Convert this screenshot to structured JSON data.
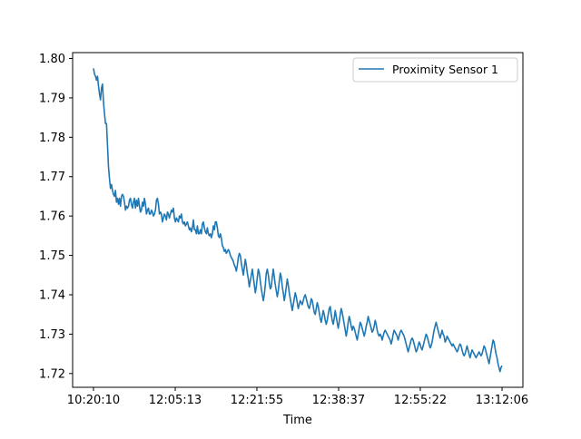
{
  "chart_data": {
    "type": "line",
    "title": "",
    "xlabel": "Time",
    "ylabel": "",
    "x_tick_labels": [
      "10:20:10",
      "12:05:13",
      "12:21:55",
      "12:38:37",
      "12:55:22",
      "13:12:06"
    ],
    "y_ticks": [
      1.72,
      1.73,
      1.74,
      1.75,
      1.76,
      1.77,
      1.78,
      1.79,
      1.8
    ],
    "y_tick_labels": [
      "1.72",
      "1.73",
      "1.74",
      "1.75",
      "1.76",
      "1.77",
      "1.78",
      "1.79",
      "1.80"
    ],
    "ylim": [
      1.7165,
      1.8015
    ],
    "grid": false,
    "legend_position": "top-right",
    "series": [
      {
        "name": "Proximity Sensor 1",
        "color": "#1f77b4",
        "values": [
          1.7975,
          1.796,
          1.7955,
          1.7945,
          1.7955,
          1.793,
          1.791,
          1.7895,
          1.7925,
          1.7935,
          1.789,
          1.786,
          1.7835,
          1.7835,
          1.778,
          1.7725,
          1.7695,
          1.767,
          1.768,
          1.7665,
          1.7655,
          1.765,
          1.7665,
          1.7635,
          1.7645,
          1.763,
          1.7645,
          1.7625,
          1.765,
          1.7655,
          1.765,
          1.7635,
          1.7615,
          1.7625,
          1.762,
          1.7625,
          1.764,
          1.7645,
          1.763,
          1.762,
          1.7635,
          1.7645,
          1.762,
          1.764,
          1.7625,
          1.7645,
          1.7625,
          1.761,
          1.7615,
          1.7635,
          1.7625,
          1.7645,
          1.763,
          1.7605,
          1.7615,
          1.762,
          1.7605,
          1.7605,
          1.7615,
          1.761,
          1.76,
          1.7605,
          1.7615,
          1.764,
          1.7645,
          1.763,
          1.7605,
          1.761,
          1.7605,
          1.7585,
          1.7595,
          1.7605,
          1.76,
          1.759,
          1.761,
          1.7605,
          1.7595,
          1.7605,
          1.7615,
          1.761,
          1.762,
          1.7595,
          1.7585,
          1.7595,
          1.759,
          1.7585,
          1.76,
          1.7595,
          1.7605,
          1.7585,
          1.758,
          1.7585,
          1.7575,
          1.758,
          1.7585,
          1.7575,
          1.7565,
          1.757,
          1.756,
          1.757,
          1.759,
          1.7565,
          1.7565,
          1.7555,
          1.7575,
          1.7555,
          1.7555,
          1.7565,
          1.7555,
          1.758,
          1.7585,
          1.757,
          1.756,
          1.7555,
          1.757,
          1.7555,
          1.755,
          1.7555,
          1.7545,
          1.7555,
          1.7575,
          1.7565,
          1.7585,
          1.7585,
          1.757,
          1.755,
          1.7545,
          1.7555,
          1.7545,
          1.7525,
          1.752,
          1.751,
          1.7515,
          1.7505,
          1.751,
          1.7515,
          1.751,
          1.75,
          1.7495,
          1.749,
          1.7485,
          1.7475,
          1.747,
          1.746,
          1.7475,
          1.7495,
          1.7505,
          1.75,
          1.748,
          1.7465,
          1.745,
          1.747,
          1.749,
          1.7475,
          1.7455,
          1.744,
          1.742,
          1.7435,
          1.745,
          1.7465,
          1.7445,
          1.7425,
          1.7405,
          1.742,
          1.7445,
          1.7465,
          1.7455,
          1.7435,
          1.7415,
          1.74,
          1.7385,
          1.74,
          1.7425,
          1.7455,
          1.7465,
          1.745,
          1.743,
          1.7415,
          1.742,
          1.7445,
          1.7465,
          1.7445,
          1.7425,
          1.741,
          1.7395,
          1.741,
          1.7435,
          1.7455,
          1.7445,
          1.742,
          1.7405,
          1.7385,
          1.74,
          1.742,
          1.744,
          1.7425,
          1.7405,
          1.739,
          1.7375,
          1.736,
          1.7375,
          1.739,
          1.7405,
          1.7395,
          1.738,
          1.7365,
          1.7375,
          1.7385,
          1.738,
          1.7375,
          1.7385,
          1.7395,
          1.74,
          1.739,
          1.738,
          1.737,
          1.7365,
          1.7375,
          1.739,
          1.7385,
          1.737,
          1.7355,
          1.735,
          1.7365,
          1.738,
          1.737,
          1.7355,
          1.734,
          1.733,
          1.7345,
          1.736,
          1.735,
          1.7335,
          1.7325,
          1.7335,
          1.735,
          1.7365,
          1.737,
          1.735,
          1.7335,
          1.7325,
          1.734,
          1.736,
          1.7345,
          1.733,
          1.7315,
          1.733,
          1.735,
          1.7365,
          1.7355,
          1.734,
          1.7325,
          1.731,
          1.7295,
          1.731,
          1.733,
          1.7345,
          1.7335,
          1.732,
          1.731,
          1.732,
          1.7315,
          1.7305,
          1.7295,
          1.7285,
          1.73,
          1.7315,
          1.733,
          1.7325,
          1.7315,
          1.7305,
          1.7295,
          1.7305,
          1.732,
          1.733,
          1.7345,
          1.7335,
          1.7325,
          1.7315,
          1.7305,
          1.731,
          1.732,
          1.7335,
          1.7325,
          1.731,
          1.73,
          1.7295,
          1.73,
          1.7295,
          1.7285,
          1.7295,
          1.7305,
          1.731,
          1.7305,
          1.73,
          1.7295,
          1.729,
          1.7285,
          1.7275,
          1.7285,
          1.73,
          1.731,
          1.7305,
          1.73,
          1.7295,
          1.7285,
          1.7295,
          1.7305,
          1.731,
          1.7305,
          1.73,
          1.7295,
          1.7285,
          1.7275,
          1.7265,
          1.7255,
          1.7265,
          1.7275,
          1.7285,
          1.729,
          1.7285,
          1.7275,
          1.7265,
          1.7255,
          1.726,
          1.727,
          1.728,
          1.7275,
          1.7265,
          1.726,
          1.727,
          1.728,
          1.729,
          1.73,
          1.7295,
          1.7285,
          1.7275,
          1.7265,
          1.727,
          1.728,
          1.7295,
          1.731,
          1.732,
          1.733,
          1.732,
          1.731,
          1.73,
          1.729,
          1.73,
          1.731,
          1.73,
          1.7295,
          1.728,
          1.7285,
          1.7295,
          1.729,
          1.7285,
          1.728,
          1.7275,
          1.727,
          1.7275,
          1.727,
          1.7265,
          1.726,
          1.7255,
          1.726,
          1.727,
          1.7275,
          1.727,
          1.726,
          1.725,
          1.7245,
          1.725,
          1.726,
          1.727,
          1.726,
          1.725,
          1.724,
          1.725,
          1.726,
          1.7255,
          1.725,
          1.7245,
          1.724,
          1.7245,
          1.725,
          1.7255,
          1.725,
          1.7245,
          1.725,
          1.726,
          1.727,
          1.7265,
          1.7255,
          1.7245,
          1.7235,
          1.7225,
          1.724,
          1.7255,
          1.727,
          1.7285,
          1.728,
          1.7265,
          1.725,
          1.724,
          1.7225,
          1.7215,
          1.7205,
          1.7215,
          1.722
        ]
      }
    ]
  }
}
